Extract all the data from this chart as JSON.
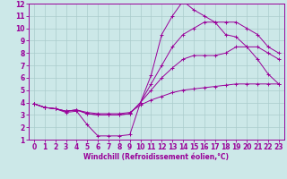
{
  "title": "",
  "xlabel": "Windchill (Refroidissement éolien,°C)",
  "ylabel": "",
  "xlim": [
    -0.5,
    23.5
  ],
  "ylim": [
    1,
    12
  ],
  "xticks": [
    0,
    1,
    2,
    3,
    4,
    5,
    6,
    7,
    8,
    9,
    10,
    11,
    12,
    13,
    14,
    15,
    16,
    17,
    18,
    19,
    20,
    21,
    22,
    23
  ],
  "yticks": [
    1,
    2,
    3,
    4,
    5,
    6,
    7,
    8,
    9,
    10,
    11,
    12
  ],
  "background_color": "#cce8e8",
  "line_color": "#990099",
  "grid_color": "#aacccc",
  "lines": [
    {
      "x": [
        0,
        1,
        2,
        3,
        4,
        5,
        6,
        7,
        8,
        9,
        10,
        11,
        12,
        13,
        14,
        15,
        16,
        17,
        18,
        19,
        20,
        21,
        22,
        23
      ],
      "y": [
        3.9,
        3.6,
        3.5,
        3.2,
        3.3,
        2.2,
        1.3,
        1.3,
        1.3,
        1.4,
        4.0,
        6.2,
        9.5,
        11.0,
        12.2,
        11.5,
        11.0,
        10.5,
        9.5,
        9.3,
        8.5,
        7.5,
        6.3,
        5.5
      ]
    },
    {
      "x": [
        0,
        1,
        2,
        3,
        4,
        5,
        6,
        7,
        8,
        9,
        10,
        11,
        12,
        13,
        14,
        15,
        16,
        17,
        18,
        19,
        20,
        21,
        22,
        23
      ],
      "y": [
        3.9,
        3.6,
        3.5,
        3.3,
        3.4,
        3.1,
        3.0,
        3.0,
        3.0,
        3.1,
        4.0,
        5.5,
        7.0,
        8.5,
        9.5,
        10.0,
        10.5,
        10.5,
        10.5,
        10.5,
        10.0,
        9.5,
        8.5,
        8.0
      ]
    },
    {
      "x": [
        0,
        1,
        2,
        3,
        4,
        5,
        6,
        7,
        8,
        9,
        10,
        11,
        12,
        13,
        14,
        15,
        16,
        17,
        18,
        19,
        20,
        21,
        22,
        23
      ],
      "y": [
        3.9,
        3.6,
        3.5,
        3.3,
        3.4,
        3.1,
        3.0,
        3.0,
        3.0,
        3.1,
        4.0,
        5.0,
        6.0,
        6.8,
        7.5,
        7.8,
        7.8,
        7.8,
        8.0,
        8.5,
        8.5,
        8.5,
        8.0,
        7.5
      ]
    },
    {
      "x": [
        0,
        1,
        2,
        3,
        4,
        5,
        6,
        7,
        8,
        9,
        10,
        11,
        12,
        13,
        14,
        15,
        16,
        17,
        18,
        19,
        20,
        21,
        22,
        23
      ],
      "y": [
        3.9,
        3.6,
        3.5,
        3.3,
        3.4,
        3.2,
        3.1,
        3.1,
        3.1,
        3.2,
        3.8,
        4.2,
        4.5,
        4.8,
        5.0,
        5.1,
        5.2,
        5.3,
        5.4,
        5.5,
        5.5,
        5.5,
        5.5,
        5.5
      ]
    }
  ],
  "tick_fontsize": 5.5,
  "xlabel_fontsize": 5.5
}
